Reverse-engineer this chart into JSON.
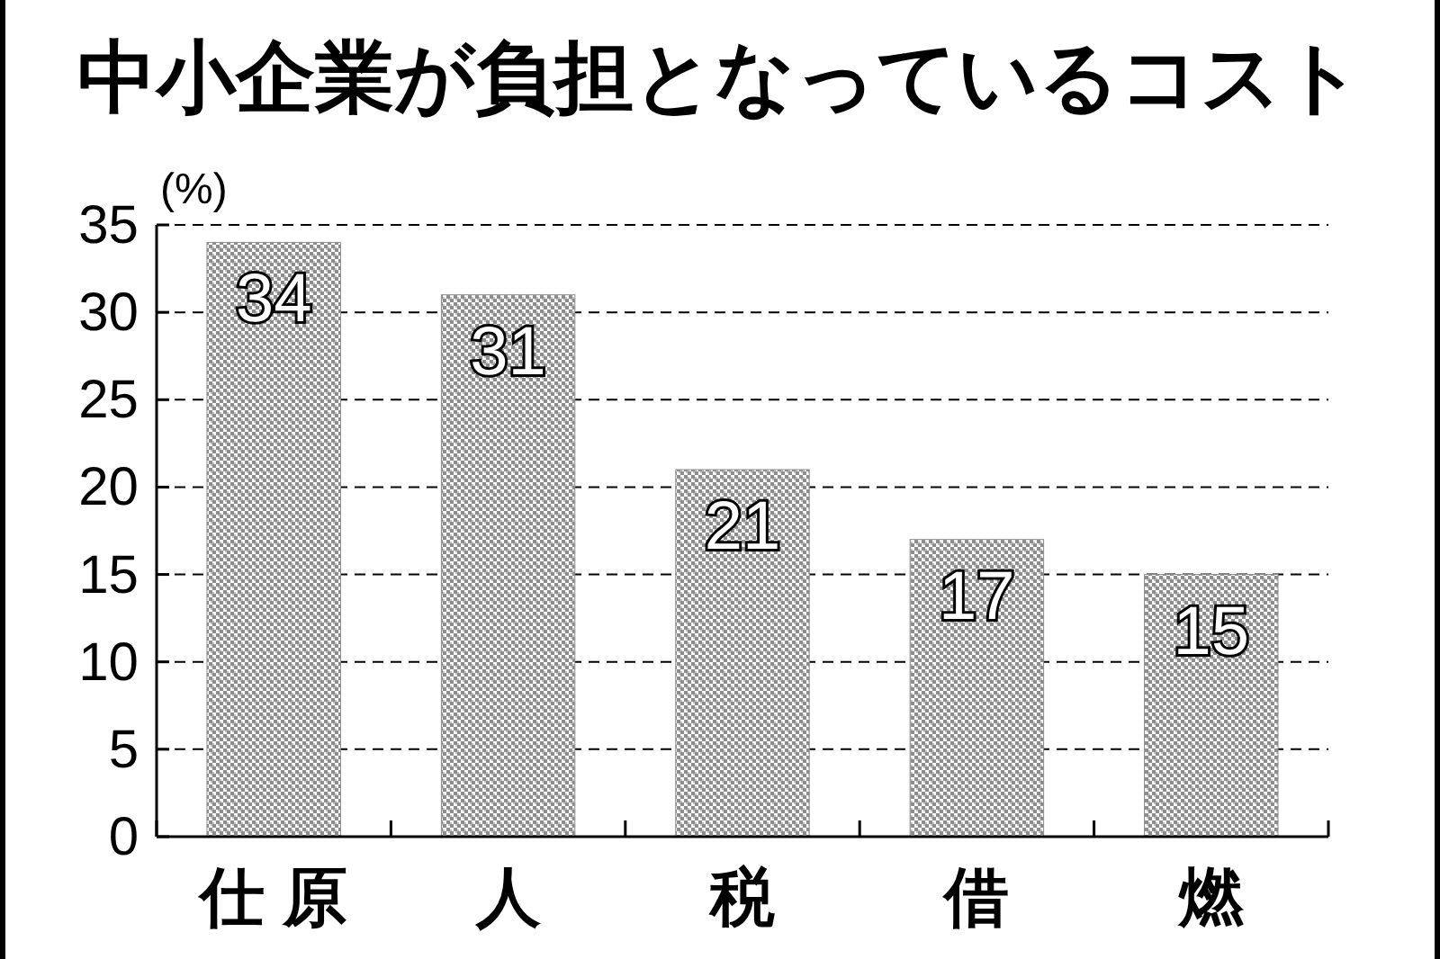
{
  "chart_data": {
    "type": "bar",
    "title": "中小企業が負担となっているコスト",
    "ylabel": "(%)",
    "categories": [
      "仕 原",
      "人",
      "税",
      "借",
      "燃"
    ],
    "values": [
      34,
      31,
      21,
      17,
      15
    ],
    "color": "#8c8c8c",
    "ylim": [
      0,
      35
    ],
    "yticks": [
      0,
      5,
      10,
      15,
      20,
      25,
      30,
      35
    ],
    "grid": "y",
    "data_labels": true
  }
}
